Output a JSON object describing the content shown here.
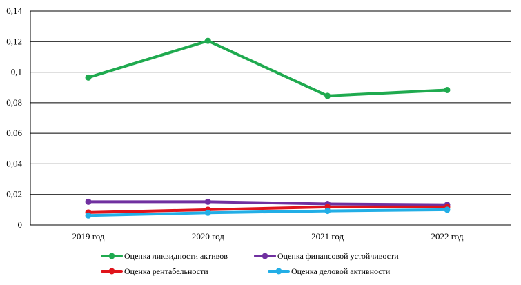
{
  "chart_data": {
    "type": "line",
    "title": "",
    "xlabel": "",
    "ylabel": "",
    "categories": [
      "2019 год",
      "2020 год",
      "2021 год",
      "2022 год"
    ],
    "ylim": [
      0,
      0.14
    ],
    "yticks": [
      0,
      0.02,
      0.04,
      0.06,
      0.08,
      0.1,
      0.12,
      0.14
    ],
    "ytick_labels": [
      "0",
      "0,02",
      "0,04",
      "0,06",
      "0,08",
      "0,1",
      "0,12",
      "0,14"
    ],
    "grid": true,
    "legend_position": "bottom",
    "series": [
      {
        "name": "Оценка ликвидности активов",
        "color": "#1faa4f",
        "values": [
          0.0965,
          0.1205,
          0.0845,
          0.0883
        ]
      },
      {
        "name": "Оценка финансовой устойчивости",
        "color": "#7030a0",
        "values": [
          0.0152,
          0.0152,
          0.0138,
          0.0132
        ]
      },
      {
        "name": "Оценка рентабельности",
        "color": "#e0141b",
        "values": [
          0.0082,
          0.01,
          0.0118,
          0.0118
        ]
      },
      {
        "name": "Оценка деловой активности",
        "color": "#22aee6",
        "values": [
          0.0062,
          0.008,
          0.0092,
          0.01
        ]
      }
    ]
  }
}
